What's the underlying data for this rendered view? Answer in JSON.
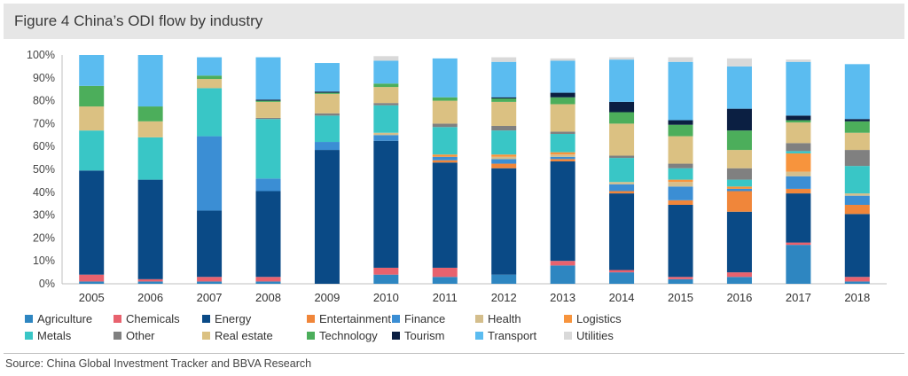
{
  "title": "Figure 4 China’s ODI flow by industry",
  "source": "Source: China Global Investment Tracker and BBVA Research",
  "chart_data": {
    "type": "bar",
    "stacked": true,
    "normalized": true,
    "title": "Figure 4 China’s ODI flow by industry",
    "xlabel": "",
    "ylabel": "",
    "ylim": [
      0,
      100
    ],
    "y_ticks": [
      "0%",
      "10%",
      "20%",
      "30%",
      "40%",
      "50%",
      "60%",
      "70%",
      "80%",
      "90%",
      "100%"
    ],
    "grid": false,
    "legend_position": "bottom",
    "categories": [
      "2005",
      "2006",
      "2007",
      "2008",
      "2009",
      "2010",
      "2011",
      "2012",
      "2013",
      "2014",
      "2015",
      "2016",
      "2017",
      "2018"
    ],
    "series": [
      {
        "name": "Agriculture",
        "color": "#2e86c1",
        "values": [
          1,
          1,
          1,
          1,
          0,
          4,
          3,
          4,
          8,
          5,
          2,
          3,
          17,
          1
        ]
      },
      {
        "name": "Chemicals",
        "color": "#e8626e",
        "values": [
          3,
          1,
          2,
          2,
          0,
          3,
          4,
          0,
          2,
          1,
          1,
          2,
          1,
          2
        ]
      },
      {
        "name": "Energy",
        "color": "#0a4a86",
        "values": [
          45.5,
          43.5,
          29,
          37.5,
          58.5,
          55.5,
          46,
          46.5,
          43.5,
          33.5,
          31.5,
          26.5,
          21.5,
          27.5
        ]
      },
      {
        "name": "Entertainment",
        "color": "#f0863a",
        "values": [
          0,
          0,
          0,
          0,
          0,
          0,
          1,
          2,
          1,
          1,
          2,
          9,
          2,
          4
        ]
      },
      {
        "name": "Finance",
        "color": "#3b8ed4",
        "values": [
          0,
          0,
          32.5,
          5.5,
          3.5,
          2.5,
          1.5,
          2,
          1,
          3,
          6,
          1,
          5.5,
          4
        ]
      },
      {
        "name": "Health",
        "color": "#d4be8c",
        "values": [
          0,
          0,
          0,
          0,
          0,
          1,
          0,
          1,
          1,
          1,
          2,
          0,
          2,
          1
        ]
      },
      {
        "name": "Logistics",
        "color": "#f7943d",
        "values": [
          0,
          0,
          0,
          0,
          0,
          0,
          1,
          1,
          1,
          0,
          1,
          1,
          8,
          0
        ]
      },
      {
        "name": "Metals",
        "color": "#39c6c6",
        "values": [
          17.5,
          18.5,
          21,
          26,
          11.5,
          12,
          12,
          10.5,
          8,
          10.5,
          5,
          3,
          1,
          12
        ]
      },
      {
        "name": "Other",
        "color": "#808080",
        "values": [
          0,
          0,
          0,
          0.5,
          1,
          1,
          1.5,
          2,
          1,
          1,
          2,
          5,
          3.5,
          7
        ]
      },
      {
        "name": "Real estate",
        "color": "#dbc182",
        "values": [
          10.5,
          7,
          4,
          7,
          8.5,
          7,
          10,
          10.5,
          12,
          14,
          12,
          8,
          9,
          7.5
        ]
      },
      {
        "name": "Technology",
        "color": "#4cae5b",
        "values": [
          9,
          6.5,
          1.5,
          0.5,
          0.5,
          1.5,
          1.5,
          1.5,
          3,
          5,
          5,
          8.5,
          1,
          5
        ]
      },
      {
        "name": "Tourism",
        "color": "#0b1f42",
        "values": [
          0,
          0,
          0,
          0.5,
          0.5,
          0,
          0,
          0.5,
          2,
          4.5,
          2,
          9.5,
          2,
          1
        ]
      },
      {
        "name": "Transport",
        "color": "#5bbcf0",
        "values": [
          13.5,
          22.5,
          8,
          18.5,
          12.5,
          10,
          17,
          15.5,
          14,
          18.5,
          25.5,
          18.5,
          23.5,
          24
        ]
      },
      {
        "name": "Utilities",
        "color": "#d9d9d9",
        "values": [
          0,
          0,
          0,
          0,
          0,
          2,
          0,
          2,
          1,
          1,
          2,
          3.5,
          1,
          0
        ]
      }
    ]
  }
}
